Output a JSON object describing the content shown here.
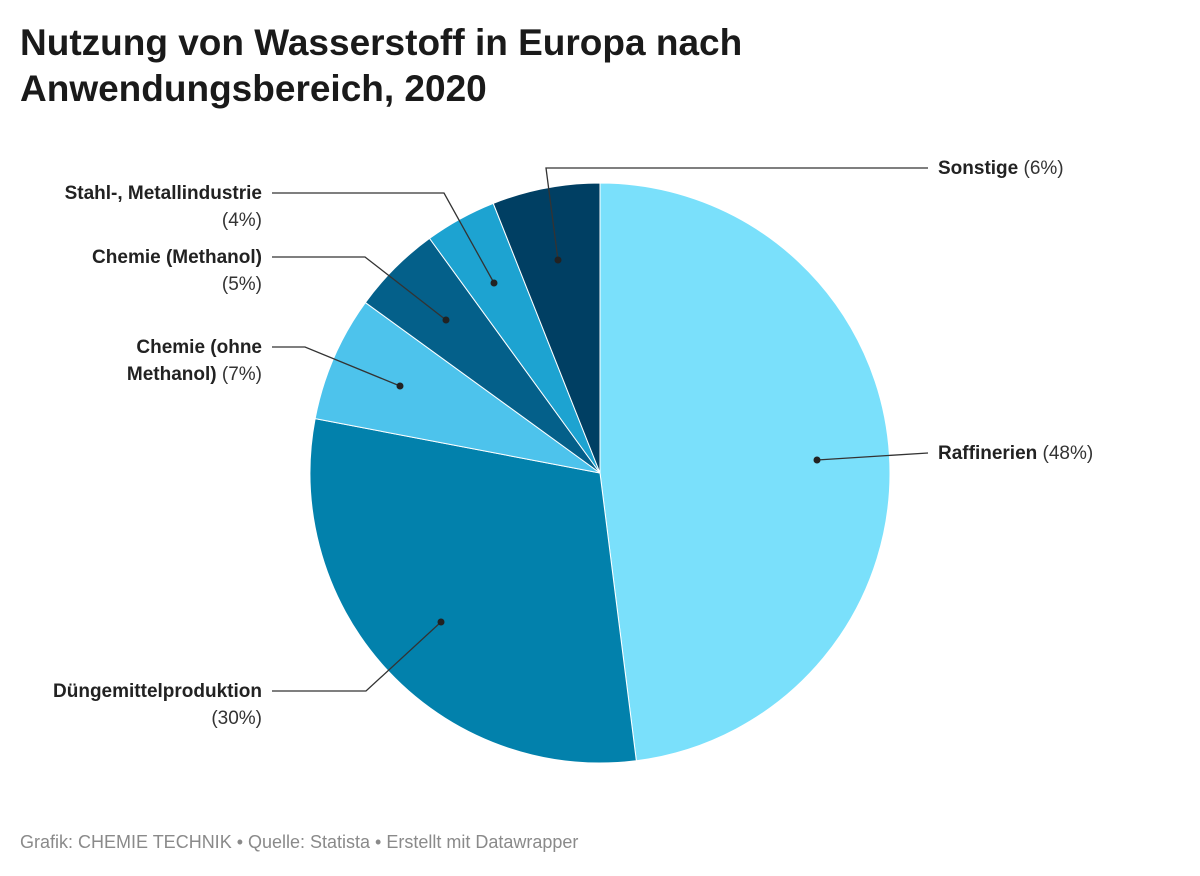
{
  "chart_data": {
    "type": "pie",
    "title": "Nutzung von Wasserstoff in Europa nach Anwendungsbereich, 2020",
    "categories": [
      "Raffinerien",
      "Düngemittelproduktion",
      "Chemie (ohne Methanol)",
      "Chemie (Methanol)",
      "Stahl-, Metallindustrie",
      "Sonstige"
    ],
    "values": [
      48,
      30,
      7,
      5,
      4,
      6
    ],
    "value_labels": [
      "(48%)",
      "(30%)",
      "(7%)",
      "(5%)",
      "(4%)",
      "(6%)"
    ],
    "colors": [
      "#7ae0fb",
      "#0281ac",
      "#4dc3ec",
      "#04608a",
      "#1da3d1",
      "#003f63"
    ],
    "source": "Grafik: CHEMIE TECHNIK • Quelle: Statista • Erstellt mit Datawrapper"
  }
}
